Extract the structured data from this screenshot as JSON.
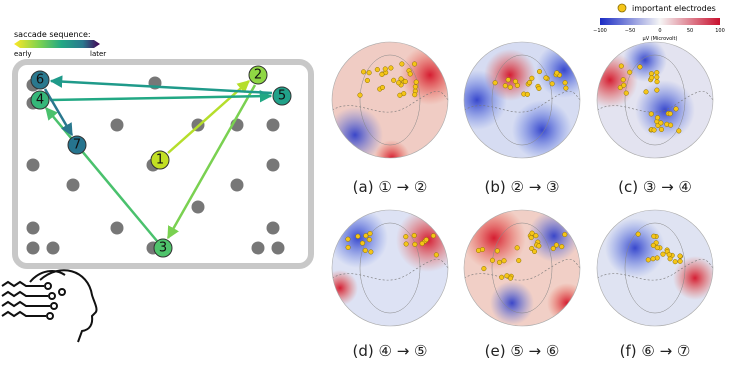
{
  "legend": {
    "title": "saccade sequence:",
    "early": "early",
    "later": "later"
  },
  "nodes": [
    {
      "label": "1"
    },
    {
      "label": "2"
    },
    {
      "label": "3"
    },
    {
      "label": "4"
    },
    {
      "label": "5"
    },
    {
      "label": "6"
    },
    {
      "label": "7"
    }
  ],
  "topomaps": {
    "legend": "important electrodes",
    "colorbar": {
      "ticks": [
        "−100",
        "−50",
        "0",
        "50",
        "100"
      ],
      "label": "μV (Microvolt)"
    },
    "panels": [
      {
        "caption": "(a) ① → ②"
      },
      {
        "caption": "(b) ② → ③"
      },
      {
        "caption": "(c) ③ → ④"
      },
      {
        "caption": "(d) ④ → ⑤"
      },
      {
        "caption": "(e) ⑤ → ⑥"
      },
      {
        "caption": "(f) ⑥ → ⑦"
      }
    ]
  }
}
